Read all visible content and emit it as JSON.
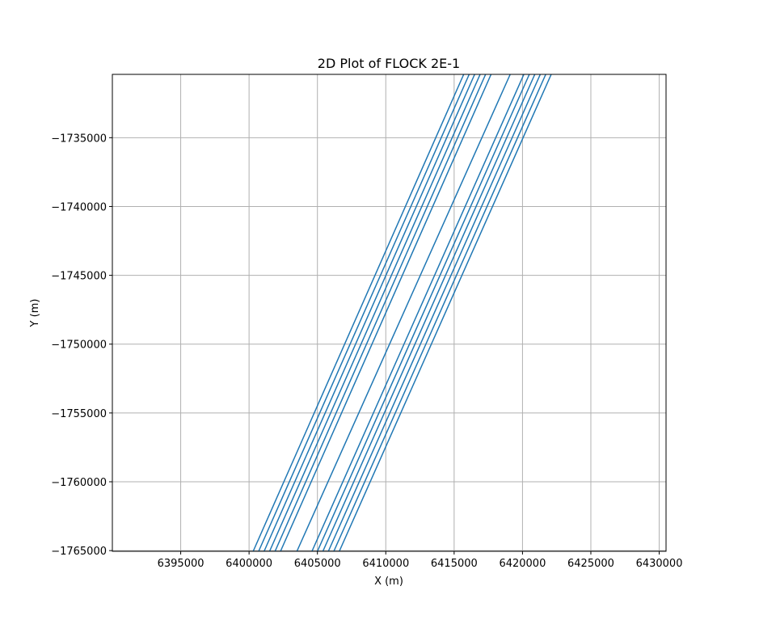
{
  "chart_data": {
    "type": "line",
    "title": "2D Plot of FLOCK 2E-1",
    "xlabel": "X (m)",
    "ylabel": "Y (m)",
    "xlim": [
      6390000,
      6430500
    ],
    "ylim": [
      -1765050,
      -1730400
    ],
    "xticks": [
      6395000,
      6400000,
      6405000,
      6410000,
      6415000,
      6420000,
      6425000,
      6430000
    ],
    "xtick_labels": [
      "6395000",
      "6400000",
      "6405000",
      "6410000",
      "6415000",
      "6420000",
      "6425000",
      "6430000"
    ],
    "yticks": [
      -1735000,
      -1740000,
      -1745000,
      -1750000,
      -1755000,
      -1760000,
      -1765000
    ],
    "ytick_labels": [
      "−1735000",
      "−1740000",
      "−1745000",
      "−1750000",
      "−1755000",
      "−1760000",
      "−1765000"
    ],
    "grid": true,
    "line_color": "#1f77b4",
    "series": [
      {
        "x": [
          6400300,
          6415700
        ],
        "y": [
          -1765050,
          -1730400
        ]
      },
      {
        "x": [
          6400700,
          6416100
        ],
        "y": [
          -1765050,
          -1730400
        ]
      },
      {
        "x": [
          6401100,
          6416500
        ],
        "y": [
          -1765050,
          -1730400
        ]
      },
      {
        "x": [
          6401500,
          6416900
        ],
        "y": [
          -1765050,
          -1730400
        ]
      },
      {
        "x": [
          6401900,
          6417300
        ],
        "y": [
          -1765050,
          -1730400
        ]
      },
      {
        "x": [
          6402300,
          6417700
        ],
        "y": [
          -1765050,
          -1730400
        ]
      },
      {
        "x": [
          6403500,
          6419100
        ],
        "y": [
          -1765050,
          -1730400
        ]
      },
      {
        "x": [
          6404600,
          6420100
        ],
        "y": [
          -1765050,
          -1730400
        ]
      },
      {
        "x": [
          6405000,
          6420500
        ],
        "y": [
          -1765050,
          -1730400
        ]
      },
      {
        "x": [
          6405400,
          6420900
        ],
        "y": [
          -1765050,
          -1730400
        ]
      },
      {
        "x": [
          6405800,
          6421300
        ],
        "y": [
          -1765050,
          -1730400
        ]
      },
      {
        "x": [
          6406200,
          6421700
        ],
        "y": [
          -1765050,
          -1730400
        ]
      },
      {
        "x": [
          6406600,
          6422100
        ],
        "y": [
          -1765050,
          -1730400
        ]
      }
    ]
  }
}
